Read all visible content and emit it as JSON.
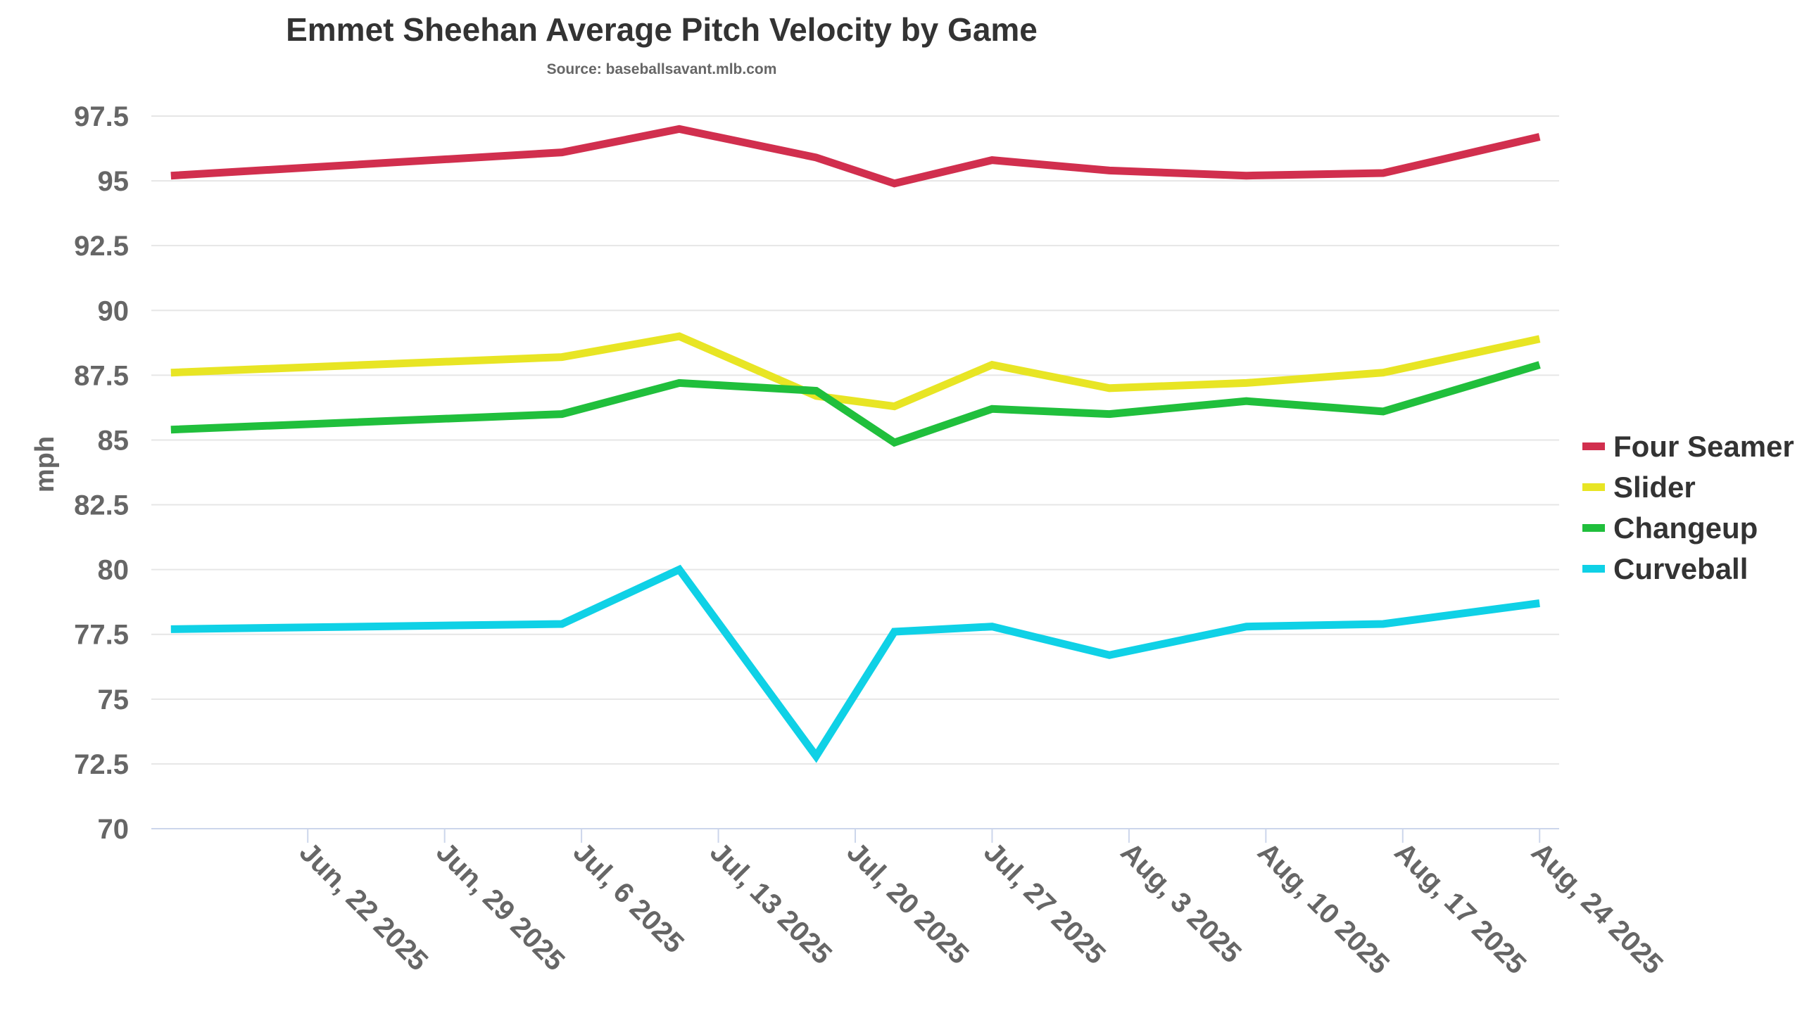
{
  "chart_data": {
    "type": "line",
    "title": "Emmet Sheehan Average Pitch Velocity by Game",
    "subtitle": "Source: baseballsavant.mlb.com",
    "xlabel": "",
    "ylabel": "mph",
    "ylim": [
      70,
      97.5
    ],
    "yticks": [
      "70",
      "72.5",
      "75",
      "77.5",
      "80",
      "82.5",
      "85",
      "87.5",
      "90",
      "92.5",
      "95",
      "97.5"
    ],
    "xlim": [
      "2025-06-14",
      "2025-08-25"
    ],
    "xticks": [
      {
        "date": "2025-06-22",
        "label": "Jun, 22 2025"
      },
      {
        "date": "2025-06-29",
        "label": "Jun, 29 2025"
      },
      {
        "date": "2025-07-06",
        "label": "Jul, 6 2025"
      },
      {
        "date": "2025-07-13",
        "label": "Jul, 13 2025"
      },
      {
        "date": "2025-07-20",
        "label": "Jul, 20 2025"
      },
      {
        "date": "2025-07-27",
        "label": "Jul, 27 2025"
      },
      {
        "date": "2025-08-03",
        "label": "Aug, 3 2025"
      },
      {
        "date": "2025-08-10",
        "label": "Aug, 10 2025"
      },
      {
        "date": "2025-08-17",
        "label": "Aug, 17 2025"
      },
      {
        "date": "2025-08-24",
        "label": "Aug, 24 2025"
      }
    ],
    "grid": true,
    "legend_position": "right",
    "x": [
      "2025-06-15",
      "2025-07-05",
      "2025-07-11",
      "2025-07-18",
      "2025-07-22",
      "2025-07-27",
      "2025-08-02",
      "2025-08-09",
      "2025-08-16",
      "2025-08-24"
    ],
    "series": [
      {
        "name": "Four Seamer",
        "color": "#d12f4e",
        "values": [
          95.2,
          96.1,
          97.0,
          95.9,
          94.9,
          95.8,
          95.4,
          95.2,
          95.3,
          96.7
        ]
      },
      {
        "name": "Slider",
        "color": "#e8e524",
        "values": [
          87.6,
          88.2,
          89.0,
          86.7,
          86.3,
          87.9,
          87.0,
          87.2,
          87.6,
          88.9
        ]
      },
      {
        "name": "Changeup",
        "color": "#20bf3c",
        "values": [
          85.4,
          86.0,
          87.2,
          86.9,
          84.9,
          86.2,
          86.0,
          86.5,
          86.1,
          87.9
        ]
      },
      {
        "name": "Curveball",
        "color": "#0fd1e6",
        "values": [
          77.7,
          77.9,
          80.0,
          72.8,
          77.6,
          77.8,
          76.7,
          77.8,
          77.9,
          78.7
        ]
      }
    ]
  }
}
